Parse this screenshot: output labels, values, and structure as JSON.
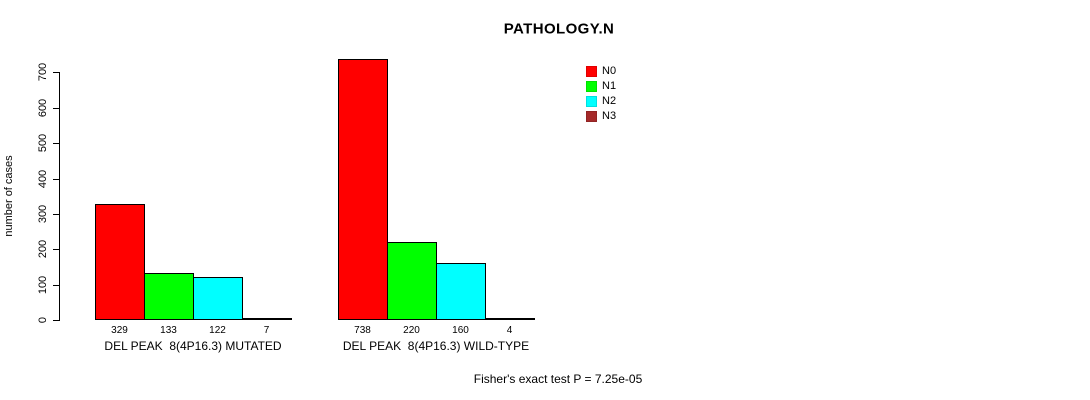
{
  "title": "PATHOLOGY.N",
  "chart_data": {
    "type": "bar",
    "title": "PATHOLOGY.N",
    "ylabel": "number of cases",
    "xlabel": "",
    "ylim": [
      0,
      700
    ],
    "yticks": [
      0,
      100,
      200,
      300,
      400,
      500,
      600,
      700
    ],
    "categories": [
      "DEL PEAK  8(4P16.3) MUTATED",
      "DEL PEAK  8(4P16.3) WILD-TYPE"
    ],
    "series": [
      {
        "name": "N0",
        "color": "#ff0000",
        "values": [
          329,
          738
        ]
      },
      {
        "name": "N1",
        "color": "#00ff00",
        "values": [
          133,
          220
        ]
      },
      {
        "name": "N2",
        "color": "#00ffff",
        "values": [
          122,
          160
        ]
      },
      {
        "name": "N3",
        "color": "#a52a2a",
        "values": [
          7,
          4
        ]
      }
    ],
    "bar_value_labels": [
      [
        329,
        133,
        122,
        7
      ],
      [
        738,
        220,
        160,
        4
      ]
    ],
    "legend_position": "right-top",
    "grid": false,
    "annotation": "Fisher's exact test P = 7.25e-05"
  }
}
